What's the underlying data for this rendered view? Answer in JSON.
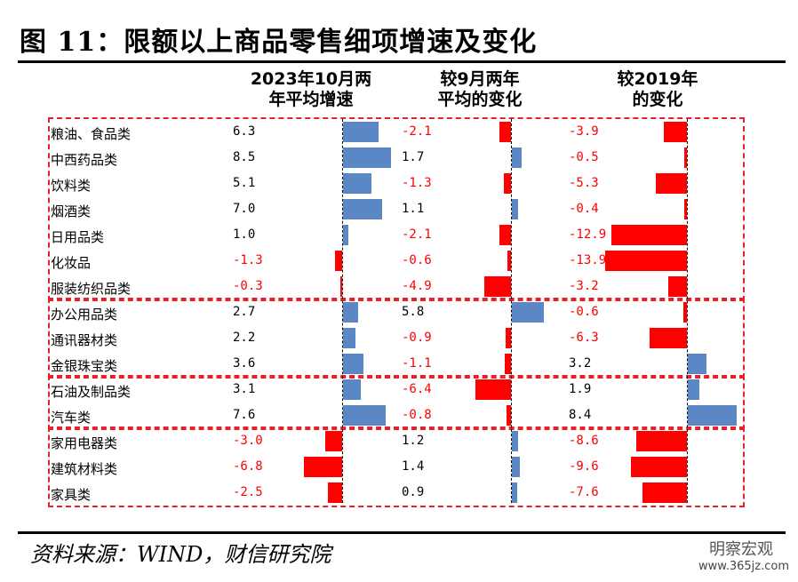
{
  "chart_data": {
    "type": "bar",
    "title": "图 11：限额以上商品零售细项增速及变化",
    "columns": [
      {
        "header": [
          "2023年10月两",
          "年平均增速"
        ]
      },
      {
        "header": [
          "较9月两年",
          "平均的变化"
        ]
      },
      {
        "header": [
          "较2019年",
          "的变化"
        ]
      }
    ],
    "categories": [
      "粮油、食品类",
      "中西药品类",
      "饮料类",
      "烟酒类",
      "日用品类",
      "化妆品",
      "服装纺织品类",
      "办公用品类",
      "通讯器材类",
      "金银珠宝类",
      "石油及制品类",
      "汽车类",
      "家用电器类",
      "建筑材料类",
      "家具类"
    ],
    "series": [
      {
        "name": "2023年10月两年平均增速",
        "values": [
          6.3,
          8.5,
          5.1,
          7.0,
          1.0,
          -1.3,
          -0.3,
          2.7,
          2.2,
          3.6,
          3.1,
          7.6,
          -3.0,
          -6.8,
          -2.5
        ]
      },
      {
        "name": "较9月两年平均的变化",
        "values": [
          -2.1,
          1.7,
          -1.3,
          1.1,
          -2.1,
          -0.6,
          -4.9,
          5.8,
          -0.9,
          -1.1,
          -6.4,
          -0.8,
          1.2,
          1.4,
          0.9
        ]
      },
      {
        "name": "较2019年的变化",
        "values": [
          -3.9,
          -0.5,
          -5.3,
          -0.4,
          -12.9,
          -13.9,
          -3.2,
          -0.6,
          -6.3,
          3.2,
          1.9,
          8.4,
          -8.6,
          -9.6,
          -7.6
        ]
      }
    ],
    "groups": [
      [
        0,
        6
      ],
      [
        7,
        9
      ],
      [
        10,
        11
      ],
      [
        12,
        14
      ]
    ],
    "colors": {
      "positive": "#5b87c5",
      "negative": "#ff0000"
    }
  },
  "footer": {
    "source": "资料来源：WIND，财信研究院",
    "watermark": "明察宏观",
    "site": "www.365jz.com"
  }
}
